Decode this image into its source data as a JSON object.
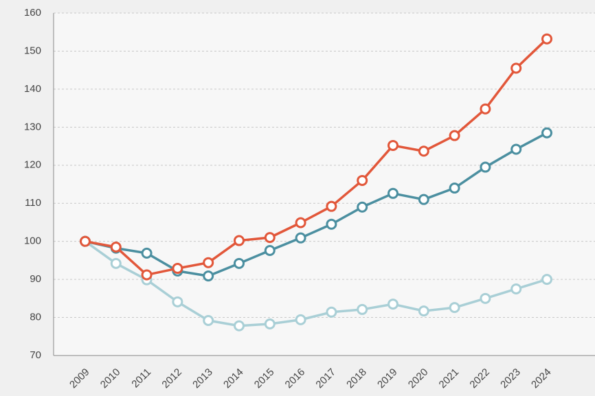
{
  "chart_data": {
    "type": "line",
    "categories": [
      "2009",
      "2010",
      "2011",
      "2012",
      "2013",
      "2014",
      "2015",
      "2016",
      "2017",
      "2018",
      "2019",
      "2020",
      "2021",
      "2022",
      "2023",
      "2024"
    ],
    "series": [
      {
        "color": "#a9cfd6",
        "values": [
          100,
          94.2,
          89.9,
          84.1,
          79.2,
          77.8,
          78.3,
          79.4,
          81.4,
          82.1,
          83.5,
          81.7,
          82.6,
          85,
          87.5,
          90
        ]
      },
      {
        "color": "#4b8fa0",
        "values": [
          100,
          98.2,
          96.9,
          92.2,
          90.9,
          94.2,
          97.6,
          100.9,
          104.5,
          109,
          112.6,
          111,
          114,
          119.5,
          124.2,
          128.5
        ]
      },
      {
        "color": "#e2573a",
        "values": [
          100,
          98.5,
          91.2,
          92.9,
          94.4,
          100.2,
          101,
          104.9,
          109.2,
          116,
          125.2,
          123.7,
          127.8,
          134.8,
          145.5,
          153.2
        ]
      }
    ],
    "ylim": [
      70,
      160
    ],
    "yticks": [
      70,
      80,
      90,
      100,
      110,
      120,
      130,
      140,
      150,
      160
    ],
    "grid": true
  }
}
